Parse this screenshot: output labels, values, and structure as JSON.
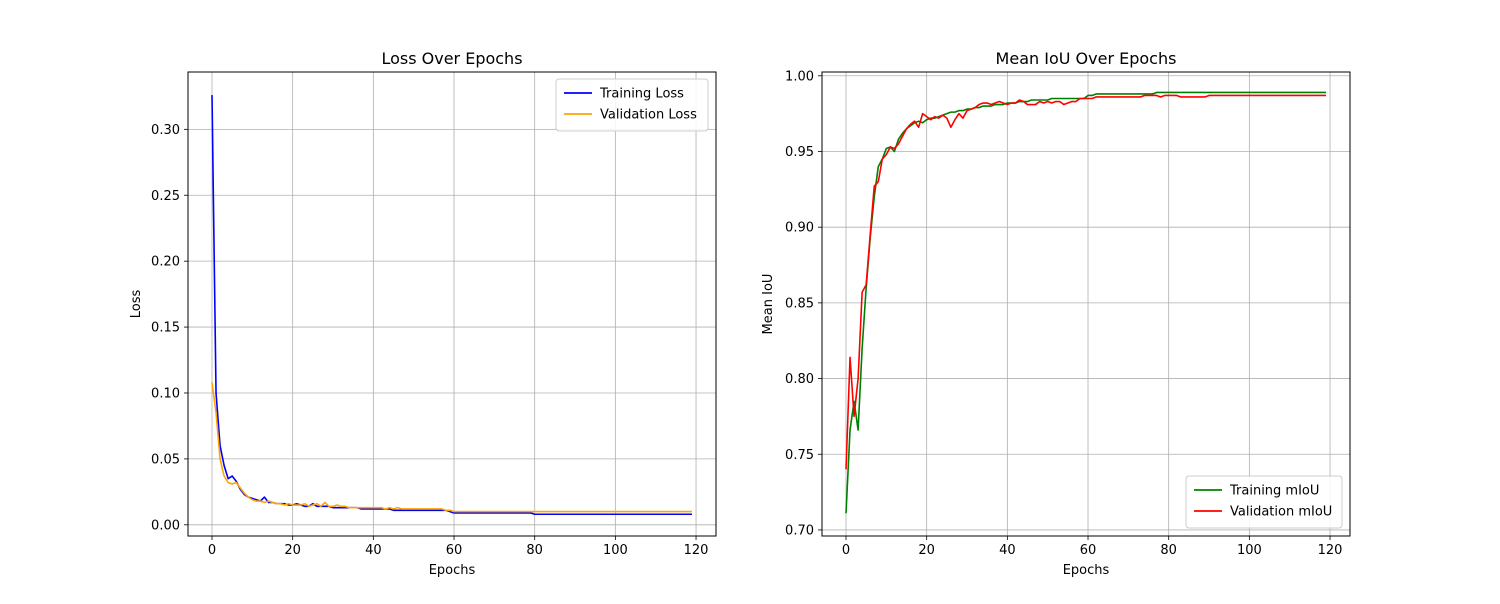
{
  "chart_data": [
    {
      "type": "line",
      "title": "Loss Over Epochs",
      "xlabel": "Epochs",
      "ylabel": "Loss",
      "xlim": [
        -5.95,
        124.95
      ],
      "ylim": [
        -0.0085,
        0.3435
      ],
      "xticks": [
        0,
        20,
        40,
        60,
        80,
        100,
        120
      ],
      "yticks": [
        0.0,
        0.05,
        0.1,
        0.15,
        0.2,
        0.25,
        0.3
      ],
      "xtick_labels": [
        "0",
        "20",
        "40",
        "60",
        "80",
        "100",
        "120"
      ],
      "ytick_labels": [
        "0.00",
        "0.05",
        "0.10",
        "0.15",
        "0.20",
        "0.25",
        "0.30"
      ],
      "grid": true,
      "legend_position": "upper right",
      "series": [
        {
          "name": "Training Loss",
          "color": "#0000ff",
          "x": [
            0,
            1,
            2,
            3,
            4,
            5,
            6,
            7,
            8,
            9,
            10,
            11,
            12,
            13,
            14,
            15,
            16,
            17,
            18,
            19,
            20,
            21,
            22,
            23,
            24,
            25,
            26,
            27,
            28,
            29,
            30,
            31,
            32,
            33,
            34,
            35,
            36,
            37,
            38,
            39,
            40,
            41,
            42,
            43,
            44,
            45,
            46,
            47,
            48,
            49,
            50,
            51,
            52,
            53,
            54,
            55,
            56,
            57,
            58,
            59,
            60,
            61,
            62,
            63,
            64,
            65,
            66,
            67,
            68,
            69,
            70,
            71,
            72,
            73,
            74,
            75,
            76,
            77,
            78,
            79,
            80,
            81,
            82,
            83,
            84,
            85,
            86,
            87,
            88,
            89,
            90,
            91,
            92,
            93,
            94,
            95,
            96,
            97,
            98,
            99,
            100,
            101,
            102,
            103,
            104,
            105,
            106,
            107,
            108,
            109,
            110,
            111,
            112,
            113,
            114,
            115,
            116,
            117,
            118,
            119
          ],
          "y": [
            0.326,
            0.1,
            0.06,
            0.045,
            0.035,
            0.037,
            0.033,
            0.027,
            0.023,
            0.021,
            0.02,
            0.019,
            0.018,
            0.021,
            0.017,
            0.017,
            0.016,
            0.016,
            0.016,
            0.015,
            0.015,
            0.016,
            0.015,
            0.014,
            0.014,
            0.016,
            0.014,
            0.014,
            0.014,
            0.014,
            0.013,
            0.013,
            0.013,
            0.013,
            0.013,
            0.013,
            0.013,
            0.012,
            0.012,
            0.012,
            0.012,
            0.012,
            0.012,
            0.012,
            0.012,
            0.011,
            0.011,
            0.011,
            0.011,
            0.011,
            0.011,
            0.011,
            0.011,
            0.011,
            0.011,
            0.011,
            0.011,
            0.011,
            0.011,
            0.01,
            0.009,
            0.009,
            0.009,
            0.009,
            0.009,
            0.009,
            0.009,
            0.009,
            0.009,
            0.009,
            0.009,
            0.009,
            0.009,
            0.009,
            0.009,
            0.009,
            0.009,
            0.009,
            0.009,
            0.009,
            0.008,
            0.008,
            0.008,
            0.008,
            0.008,
            0.008,
            0.008,
            0.008,
            0.008,
            0.008,
            0.008,
            0.008,
            0.008,
            0.008,
            0.008,
            0.008,
            0.008,
            0.008,
            0.008,
            0.008,
            0.008,
            0.008,
            0.008,
            0.008,
            0.008,
            0.008,
            0.008,
            0.008,
            0.008,
            0.008,
            0.008,
            0.008,
            0.008,
            0.008,
            0.008,
            0.008,
            0.008,
            0.008,
            0.008,
            0.008
          ]
        },
        {
          "name": "Validation Loss",
          "color": "#ffa500",
          "x": [
            0,
            1,
            2,
            3,
            4,
            5,
            6,
            7,
            8,
            9,
            10,
            11,
            12,
            13,
            14,
            15,
            16,
            17,
            18,
            19,
            20,
            21,
            22,
            23,
            24,
            25,
            26,
            27,
            28,
            29,
            30,
            31,
            32,
            33,
            34,
            35,
            36,
            37,
            38,
            39,
            40,
            41,
            42,
            43,
            44,
            45,
            46,
            47,
            48,
            49,
            50,
            51,
            52,
            53,
            54,
            55,
            56,
            57,
            58,
            59,
            60,
            61,
            62,
            63,
            64,
            65,
            66,
            67,
            68,
            69,
            70,
            71,
            72,
            73,
            74,
            75,
            76,
            77,
            78,
            79,
            80,
            81,
            82,
            83,
            84,
            85,
            86,
            87,
            88,
            89,
            90,
            91,
            92,
            93,
            94,
            95,
            96,
            97,
            98,
            99,
            100,
            101,
            102,
            103,
            104,
            105,
            106,
            107,
            108,
            109,
            110,
            111,
            112,
            113,
            114,
            115,
            116,
            117,
            118,
            119
          ],
          "y": [
            0.108,
            0.085,
            0.05,
            0.037,
            0.032,
            0.031,
            0.032,
            0.028,
            0.024,
            0.021,
            0.019,
            0.018,
            0.018,
            0.017,
            0.018,
            0.017,
            0.016,
            0.016,
            0.015,
            0.016,
            0.015,
            0.015,
            0.015,
            0.016,
            0.014,
            0.015,
            0.016,
            0.014,
            0.017,
            0.014,
            0.014,
            0.015,
            0.014,
            0.014,
            0.013,
            0.013,
            0.013,
            0.013,
            0.013,
            0.013,
            0.013,
            0.013,
            0.013,
            0.012,
            0.013,
            0.012,
            0.013,
            0.012,
            0.012,
            0.012,
            0.012,
            0.012,
            0.012,
            0.012,
            0.012,
            0.012,
            0.012,
            0.012,
            0.011,
            0.011,
            0.01,
            0.01,
            0.01,
            0.01,
            0.01,
            0.01,
            0.01,
            0.01,
            0.01,
            0.01,
            0.01,
            0.01,
            0.01,
            0.01,
            0.01,
            0.01,
            0.01,
            0.01,
            0.01,
            0.01,
            0.01,
            0.01,
            0.01,
            0.01,
            0.01,
            0.01,
            0.01,
            0.01,
            0.01,
            0.01,
            0.01,
            0.01,
            0.01,
            0.01,
            0.01,
            0.01,
            0.01,
            0.01,
            0.01,
            0.01,
            0.01,
            0.01,
            0.01,
            0.01,
            0.01,
            0.01,
            0.01,
            0.01,
            0.01,
            0.01,
            0.01,
            0.01,
            0.01,
            0.01,
            0.01,
            0.01,
            0.01,
            0.01,
            0.01,
            0.01
          ]
        }
      ]
    },
    {
      "type": "line",
      "title": "Mean IoU Over Epochs",
      "xlabel": "Epochs",
      "ylabel": "Mean IoU",
      "xlim": [
        -5.95,
        124.95
      ],
      "ylim": [
        0.696,
        1.0025
      ],
      "xticks": [
        0,
        20,
        40,
        60,
        80,
        100,
        120
      ],
      "yticks": [
        0.7,
        0.75,
        0.8,
        0.85,
        0.9,
        0.95,
        1.0
      ],
      "xtick_labels": [
        "0",
        "20",
        "40",
        "60",
        "80",
        "100",
        "120"
      ],
      "ytick_labels": [
        "0.70",
        "0.75",
        "0.80",
        "0.85",
        "0.90",
        "0.95",
        "1.00"
      ],
      "grid": true,
      "legend_position": "lower right",
      "series": [
        {
          "name": "Training mIoU",
          "color": "#008000",
          "x": [
            0,
            1,
            2,
            3,
            4,
            5,
            6,
            7,
            8,
            9,
            10,
            11,
            12,
            13,
            14,
            15,
            16,
            17,
            18,
            19,
            20,
            21,
            22,
            23,
            24,
            25,
            26,
            27,
            28,
            29,
            30,
            31,
            32,
            33,
            34,
            35,
            36,
            37,
            38,
            39,
            40,
            41,
            42,
            43,
            44,
            45,
            46,
            47,
            48,
            49,
            50,
            51,
            52,
            53,
            54,
            55,
            56,
            57,
            58,
            59,
            60,
            61,
            62,
            63,
            64,
            65,
            66,
            67,
            68,
            69,
            70,
            71,
            72,
            73,
            74,
            75,
            76,
            77,
            78,
            79,
            80,
            81,
            82,
            83,
            84,
            85,
            86,
            87,
            88,
            89,
            90,
            91,
            92,
            93,
            94,
            95,
            96,
            97,
            98,
            99,
            100,
            101,
            102,
            103,
            104,
            105,
            106,
            107,
            108,
            109,
            110,
            111,
            112,
            113,
            114,
            115,
            116,
            117,
            118,
            119
          ],
          "y": [
            0.711,
            0.766,
            0.785,
            0.766,
            0.82,
            0.86,
            0.893,
            0.92,
            0.94,
            0.945,
            0.952,
            0.953,
            0.95,
            0.958,
            0.962,
            0.965,
            0.967,
            0.969,
            0.97,
            0.969,
            0.971,
            0.972,
            0.972,
            0.973,
            0.974,
            0.975,
            0.976,
            0.976,
            0.977,
            0.977,
            0.978,
            0.978,
            0.979,
            0.979,
            0.98,
            0.98,
            0.98,
            0.981,
            0.981,
            0.981,
            0.982,
            0.982,
            0.982,
            0.983,
            0.983,
            0.983,
            0.984,
            0.984,
            0.984,
            0.984,
            0.984,
            0.985,
            0.985,
            0.985,
            0.985,
            0.985,
            0.985,
            0.985,
            0.985,
            0.985,
            0.987,
            0.987,
            0.988,
            0.988,
            0.988,
            0.988,
            0.988,
            0.988,
            0.988,
            0.988,
            0.988,
            0.988,
            0.988,
            0.988,
            0.988,
            0.988,
            0.988,
            0.989,
            0.989,
            0.989,
            0.989,
            0.989,
            0.989,
            0.989,
            0.989,
            0.989,
            0.989,
            0.989,
            0.989,
            0.989,
            0.989,
            0.989,
            0.989,
            0.989,
            0.989,
            0.989,
            0.989,
            0.989,
            0.989,
            0.989,
            0.989,
            0.989,
            0.989,
            0.989,
            0.989,
            0.989,
            0.989,
            0.989,
            0.989,
            0.989,
            0.989,
            0.989,
            0.989,
            0.989,
            0.989,
            0.989,
            0.989,
            0.989,
            0.989,
            0.989
          ]
        },
        {
          "name": "Validation mIoU",
          "color": "#ff0000",
          "x": [
            0,
            1,
            2,
            3,
            4,
            5,
            6,
            7,
            8,
            9,
            10,
            11,
            12,
            13,
            14,
            15,
            16,
            17,
            18,
            19,
            20,
            21,
            22,
            23,
            24,
            25,
            26,
            27,
            28,
            29,
            30,
            31,
            32,
            33,
            34,
            35,
            36,
            37,
            38,
            39,
            40,
            41,
            42,
            43,
            44,
            45,
            46,
            47,
            48,
            49,
            50,
            51,
            52,
            53,
            54,
            55,
            56,
            57,
            58,
            59,
            60,
            61,
            62,
            63,
            64,
            65,
            66,
            67,
            68,
            69,
            70,
            71,
            72,
            73,
            74,
            75,
            76,
            77,
            78,
            79,
            80,
            81,
            82,
            83,
            84,
            85,
            86,
            87,
            88,
            89,
            90,
            91,
            92,
            93,
            94,
            95,
            96,
            97,
            98,
            99,
            100,
            101,
            102,
            103,
            104,
            105,
            106,
            107,
            108,
            109,
            110,
            111,
            112,
            113,
            114,
            115,
            116,
            117,
            118,
            119
          ],
          "y": [
            0.74,
            0.814,
            0.775,
            0.8,
            0.857,
            0.862,
            0.895,
            0.927,
            0.93,
            0.945,
            0.948,
            0.953,
            0.952,
            0.955,
            0.96,
            0.965,
            0.968,
            0.97,
            0.966,
            0.975,
            0.973,
            0.971,
            0.973,
            0.972,
            0.974,
            0.972,
            0.966,
            0.971,
            0.975,
            0.972,
            0.977,
            0.978,
            0.979,
            0.981,
            0.982,
            0.982,
            0.981,
            0.982,
            0.983,
            0.982,
            0.981,
            0.982,
            0.982,
            0.984,
            0.983,
            0.981,
            0.981,
            0.981,
            0.983,
            0.982,
            0.983,
            0.982,
            0.983,
            0.983,
            0.981,
            0.982,
            0.983,
            0.983,
            0.985,
            0.985,
            0.985,
            0.985,
            0.986,
            0.986,
            0.986,
            0.986,
            0.986,
            0.986,
            0.986,
            0.986,
            0.986,
            0.986,
            0.986,
            0.986,
            0.987,
            0.987,
            0.987,
            0.987,
            0.986,
            0.987,
            0.987,
            0.987,
            0.987,
            0.986,
            0.986,
            0.986,
            0.986,
            0.986,
            0.986,
            0.986,
            0.987,
            0.987,
            0.987,
            0.987,
            0.987,
            0.987,
            0.987,
            0.987,
            0.987,
            0.987,
            0.987,
            0.987,
            0.987,
            0.987,
            0.987,
            0.987,
            0.987,
            0.987,
            0.987,
            0.987,
            0.987,
            0.987,
            0.987,
            0.987,
            0.987,
            0.987,
            0.987,
            0.987,
            0.987,
            0.987
          ]
        }
      ]
    }
  ]
}
